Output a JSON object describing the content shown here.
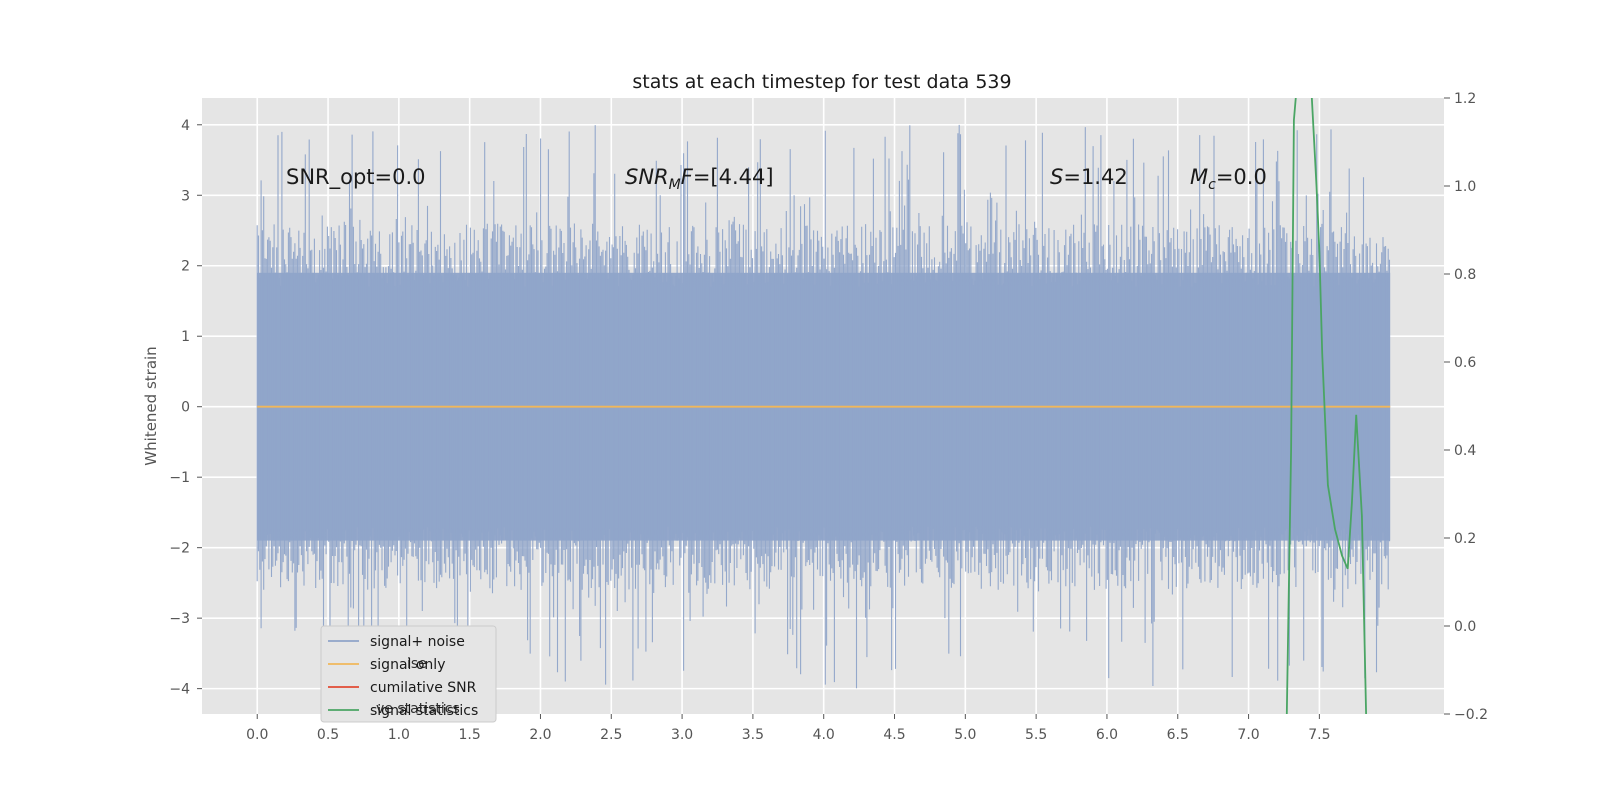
{
  "chart_data": {
    "type": "line",
    "title": "stats at each timestep for test data 539",
    "ylabel": "Whitened strain",
    "xlabel": "",
    "xlim": [
      -0.39,
      8.38
    ],
    "ylim": [
      -4.36,
      4.38
    ],
    "y2lim": [
      -0.2,
      1.2
    ],
    "x_ticks": [
      "0.0",
      "0.5",
      "1.0",
      "1.5",
      "2.0",
      "2.5",
      "3.0",
      "3.5",
      "4.0",
      "4.5",
      "5.0",
      "5.5",
      "6.0",
      "6.5",
      "7.0",
      "7.5"
    ],
    "y_ticks": [
      "4",
      "3",
      "2",
      "1",
      "0",
      "−1",
      "−2",
      "−3",
      "−4"
    ],
    "y2_ticks": [
      "1.2",
      "1.0",
      "0.8",
      "0.6",
      "0.4",
      "0.2",
      "0.0",
      "−0.2"
    ],
    "grid": true,
    "legend_position": "lower-left",
    "annotations": {
      "snr_opt": "SNR_opt=0.0",
      "snr_mf_main": "SNR",
      "snr_mf_sub": "M",
      "snr_mf_mid": "F",
      "snr_mf_val": "=[4.44]",
      "s_var": "S",
      "s_val": "=1.42",
      "mc_var": "M",
      "mc_sub": "c",
      "mc_val": "=0.0"
    },
    "series": [
      {
        "name": "signal+ noise",
        "color": "#8fa4c9",
        "axis": "left",
        "x_range": [
          0.0,
          8.0
        ],
        "envelope_typical": [
          -1.9,
          1.9
        ],
        "envelope_extremes": [
          -4.0,
          4.0
        ]
      },
      {
        "name": "signal only",
        "color": "#f0b75a",
        "axis": "left",
        "x": [
          0.0,
          8.0
        ],
        "y": [
          0.0,
          0.0
        ]
      },
      {
        "name": "cumilative SNR",
        "color": "#e24a33",
        "axis": "right",
        "x": [],
        "y": []
      },
      {
        "name": "signal statistics",
        "color": "#4aa564",
        "axis": "right",
        "x": [
          7.27,
          7.3,
          7.32,
          7.36,
          7.43,
          7.48,
          7.5,
          7.52,
          7.56,
          7.61,
          7.66,
          7.7,
          7.73,
          7.76,
          7.8,
          7.83
        ],
        "y": [
          -0.2,
          0.4,
          1.15,
          1.3,
          1.3,
          1.0,
          0.85,
          0.62,
          0.32,
          0.22,
          0.16,
          0.13,
          0.28,
          0.48,
          0.25,
          -0.2
        ]
      }
    ],
    "legend": {
      "items": [
        {
          "label": "signal+ noise",
          "color": "#8fa4c9"
        },
        {
          "label": "signal only",
          "color": "#f0b75a"
        },
        {
          "label": "cumilative SNR",
          "color": "#e24a33"
        },
        {
          "label": "signal statistics",
          "color": "#4aa564"
        }
      ],
      "ghost_texts": [
        "ise",
        "ve statistics"
      ]
    }
  }
}
